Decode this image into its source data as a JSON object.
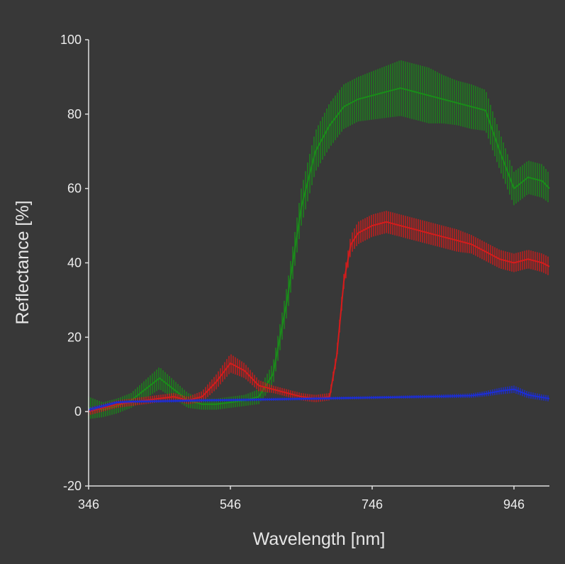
{
  "chart_data": {
    "type": "line",
    "title": "",
    "xlabel": "Wavelength [nm]",
    "ylabel": "Reflectance [%]",
    "xlim": [
      346,
      996
    ],
    "ylim": [
      -20,
      100
    ],
    "x_ticks": [
      "346",
      "546",
      "746",
      "946"
    ],
    "y_ticks": [
      "-20",
      "0",
      "20",
      "40",
      "60",
      "80",
      "100"
    ],
    "grid": false,
    "legend": "none",
    "background": "#383838",
    "series": [
      {
        "color": "#1a8c1a",
        "x": [
          346,
          366,
          386,
          406,
          426,
          446,
          466,
          486,
          506,
          526,
          546,
          566,
          586,
          606,
          626,
          646,
          666,
          686,
          706,
          726,
          746,
          766,
          786,
          806,
          826,
          846,
          866,
          886,
          906,
          926,
          946,
          966,
          986,
          996
        ],
        "y": [
          1,
          0.5,
          1.5,
          3,
          6,
          9,
          6,
          3,
          2,
          2,
          2.5,
          3,
          4,
          10,
          30,
          55,
          70,
          77,
          82,
          84,
          85,
          86,
          87,
          86,
          85,
          84,
          83,
          82,
          81,
          70,
          60,
          63,
          62,
          60
        ],
        "spread": [
          3,
          2,
          2,
          2,
          2.5,
          3,
          2.5,
          2,
          1.5,
          1.5,
          1.5,
          1.5,
          2,
          3,
          4,
          5,
          5.5,
          6,
          6,
          6,
          6.5,
          7,
          7.5,
          7.5,
          7.5,
          6.5,
          6,
          6,
          5.5,
          5,
          4.5,
          4.5,
          4.5,
          4
        ]
      },
      {
        "color": "#d41c1c",
        "x": [
          346,
          366,
          386,
          406,
          426,
          446,
          466,
          486,
          506,
          526,
          546,
          566,
          586,
          606,
          626,
          646,
          666,
          686,
          696,
          706,
          716,
          726,
          746,
          766,
          786,
          806,
          826,
          846,
          866,
          886,
          906,
          926,
          946,
          966,
          986,
          996
        ],
        "y": [
          0,
          1,
          2,
          2.5,
          3,
          3.5,
          4,
          3,
          4,
          8,
          13,
          11,
          7,
          6,
          5,
          4,
          3.5,
          4,
          15,
          35,
          45,
          48,
          50,
          51,
          50,
          49,
          48,
          47,
          46,
          45,
          43,
          41,
          40,
          41,
          40,
          39
        ],
        "spread": [
          1,
          1,
          1,
          1,
          1,
          1,
          1,
          1,
          1.5,
          2,
          2.5,
          2,
          1.5,
          1,
          1,
          1,
          1,
          1,
          1.5,
          2,
          2.5,
          3,
          3,
          3,
          3,
          3,
          3,
          3,
          3,
          2.5,
          2.5,
          2.5,
          2.5,
          2.5,
          2.5,
          2.5
        ]
      },
      {
        "color": "#1c2ed6",
        "x": [
          346,
          366,
          386,
          406,
          446,
          506,
          546,
          606,
          666,
          726,
          786,
          846,
          886,
          906,
          926,
          946,
          966,
          986,
          996
        ],
        "y": [
          0.5,
          1.5,
          2.5,
          2.7,
          2.8,
          3,
          3.1,
          3.3,
          3.5,
          3.7,
          3.9,
          4.1,
          4.3,
          4.8,
          5.5,
          6,
          4.5,
          3.8,
          3.5
        ],
        "spread": [
          0.6,
          0.5,
          0.4,
          0.4,
          0.4,
          0.4,
          0.4,
          0.4,
          0.4,
          0.4,
          0.4,
          0.5,
          0.6,
          0.7,
          0.9,
          1,
          0.9,
          0.8,
          0.8
        ]
      }
    ]
  }
}
